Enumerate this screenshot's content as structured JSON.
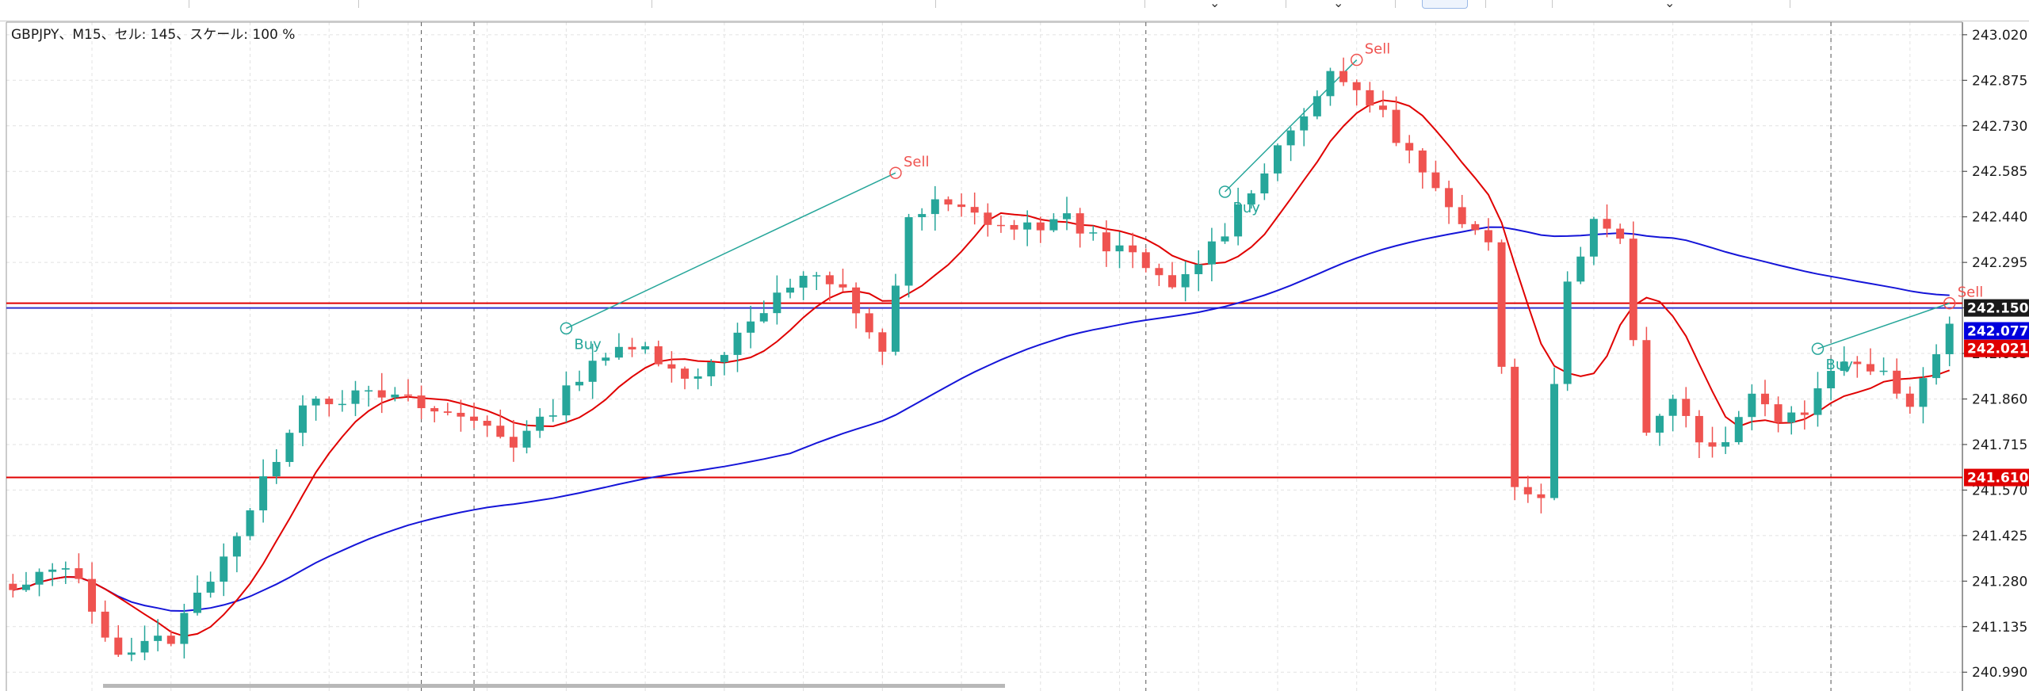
{
  "chart_info": "GBPJPY、M15、セル: 145、スケール: 100 %",
  "chart_data": {
    "type": "candlestick",
    "symbol": "GBPJPY",
    "timeframe": "M15",
    "ylim": [
      240.93,
      243.06
    ],
    "y_ticks": [
      "243.020",
      "242.875",
      "242.730",
      "242.585",
      "242.440",
      "242.295",
      "242.150",
      "242.005",
      "241.860",
      "241.715",
      "241.570",
      "241.425",
      "241.280",
      "241.135",
      "240.990"
    ],
    "price_labels": [
      {
        "value": 242.15,
        "text": "242.150",
        "bg": "#1a1a1a"
      },
      {
        "value": 242.077,
        "text": "242.077",
        "bg": "#0000dd"
      },
      {
        "value": 242.021,
        "text": "242.021",
        "bg": "#e00000"
      },
      {
        "value": 241.61,
        "text": "241.610",
        "bg": "#e00000"
      }
    ],
    "horizontal_lines": [
      {
        "value": 242.165,
        "color": "#e00000"
      },
      {
        "value": 242.15,
        "color": "#3333cc"
      },
      {
        "value": 241.61,
        "color": "#e00000"
      }
    ],
    "signals": [
      {
        "label": "Buy",
        "type": "buy",
        "index": 42,
        "price": 242.085
      },
      {
        "label": "Sell",
        "type": "sell",
        "index": 67,
        "price": 242.58
      },
      {
        "label": "Buy",
        "type": "buy",
        "index": 92,
        "price": 242.52
      },
      {
        "label": "Sell",
        "type": "sell",
        "index": 102,
        "price": 242.94
      },
      {
        "label": "Buy",
        "type": "buy",
        "index": 137,
        "price": 242.02
      },
      {
        "label": "Sell",
        "type": "sell",
        "index": 147,
        "price": 242.165
      }
    ],
    "trend_lines": [
      {
        "from_index": 42,
        "from_price": 242.085,
        "to_index": 67,
        "to_price": 242.58
      },
      {
        "from_index": 92,
        "from_price": 242.52,
        "to_index": 102,
        "to_price": 242.94
      },
      {
        "from_index": 137,
        "from_price": 242.02,
        "to_index": 147,
        "to_price": 242.165
      }
    ],
    "anchors": [
      [
        0,
        241.24
      ],
      [
        4,
        241.34
      ],
      [
        8,
        241.05
      ],
      [
        12,
        241.1
      ],
      [
        18,
        241.5
      ],
      [
        22,
        241.86
      ],
      [
        28,
        241.87
      ],
      [
        30,
        241.85
      ],
      [
        32,
        241.82
      ],
      [
        36,
        241.78
      ],
      [
        38,
        241.72
      ],
      [
        40,
        241.78
      ],
      [
        44,
        241.99
      ],
      [
        48,
        242.02
      ],
      [
        52,
        241.92
      ],
      [
        56,
        242.12
      ],
      [
        60,
        242.25
      ],
      [
        63,
        242.2
      ],
      [
        66,
        242.02
      ],
      [
        68,
        242.42
      ],
      [
        70,
        242.48
      ],
      [
        72,
        242.46
      ],
      [
        76,
        242.4
      ],
      [
        80,
        242.43
      ],
      [
        82,
        242.38
      ],
      [
        86,
        242.28
      ],
      [
        88,
        242.2
      ],
      [
        92,
        242.4
      ],
      [
        95,
        242.6
      ],
      [
        98,
        242.78
      ],
      [
        100,
        242.88
      ],
      [
        102,
        242.85
      ],
      [
        104,
        242.76
      ],
      [
        108,
        242.52
      ],
      [
        110,
        242.4
      ],
      [
        112,
        242.35
      ],
      [
        114,
        241.6
      ],
      [
        116,
        241.56
      ],
      [
        118,
        242.25
      ],
      [
        120,
        242.42
      ],
      [
        122,
        242.38
      ],
      [
        124,
        241.75
      ],
      [
        126,
        241.88
      ],
      [
        128,
        241.72
      ],
      [
        130,
        241.74
      ],
      [
        132,
        241.88
      ],
      [
        134,
        241.8
      ],
      [
        136,
        241.82
      ],
      [
        138,
        241.97
      ],
      [
        142,
        241.96
      ],
      [
        144,
        241.84
      ],
      [
        146,
        242.02
      ],
      [
        147,
        242.12
      ]
    ],
    "candle_count": 148,
    "ma_fast_color": "#e00000",
    "ma_slow_color": "#1515d8",
    "bull_color": "#26a69a",
    "bear_color": "#ef5350",
    "signal_color_buy": "#26a69a",
    "signal_color_sell": "#ef5350",
    "grid": true,
    "vertical_separators_index": [
      31,
      35,
      86,
      138
    ]
  }
}
